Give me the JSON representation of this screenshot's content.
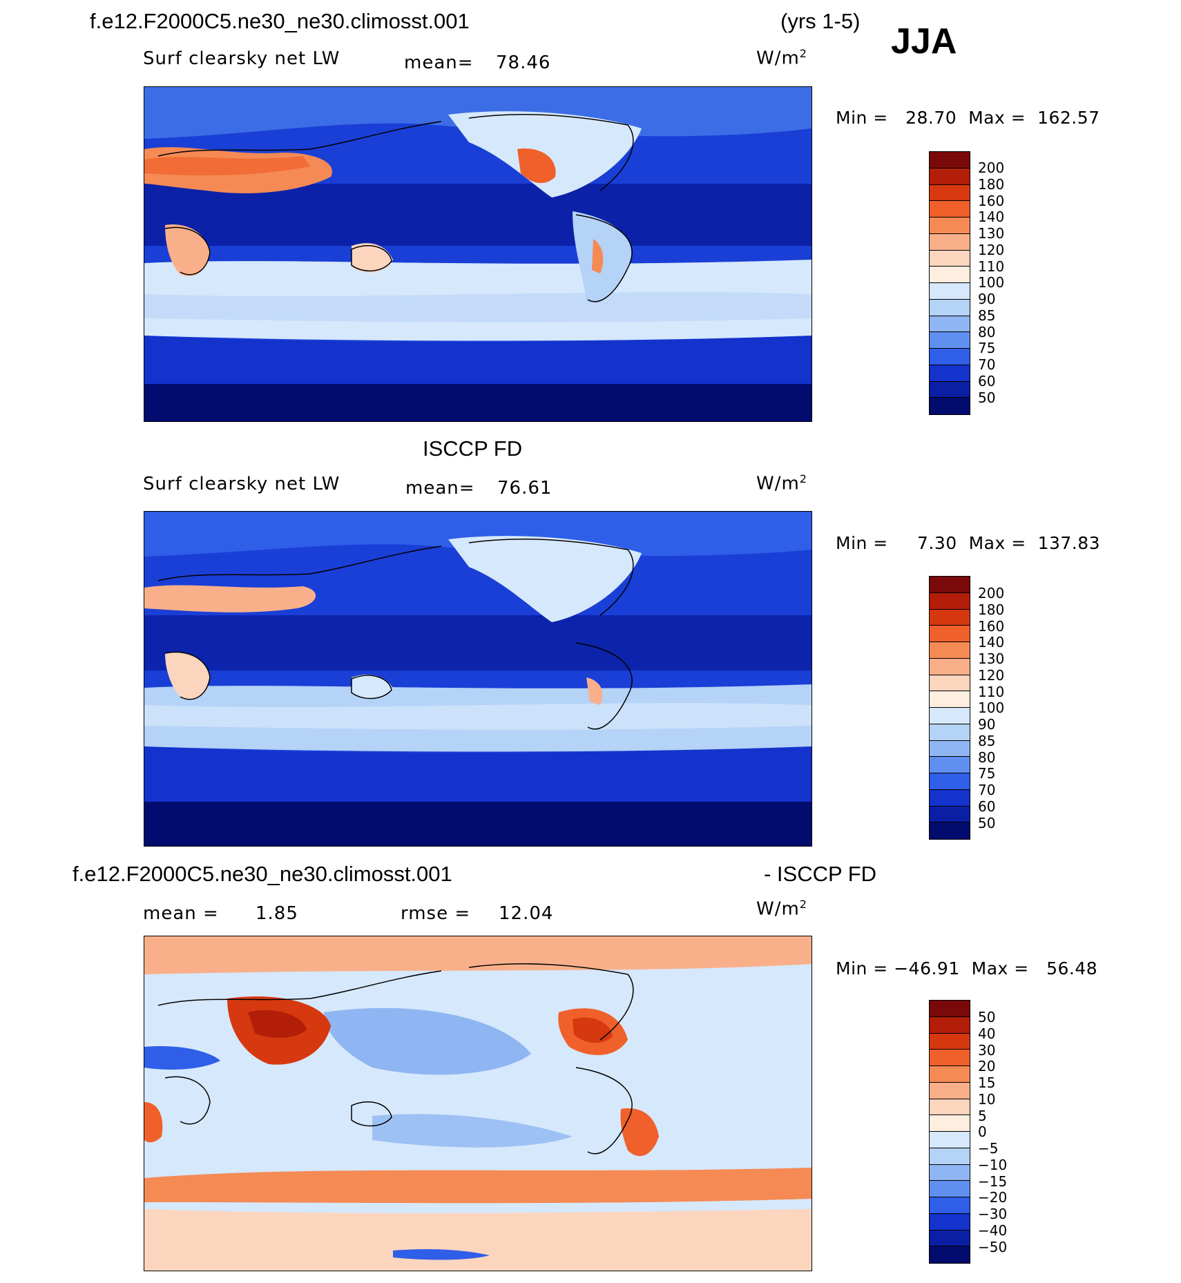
{
  "header": {
    "case_name": "f.e12.F2000C5.ne30_ne30.climosst.001",
    "years": "(yrs 1-5)",
    "season": "JJA"
  },
  "panels": [
    {
      "id": "model",
      "field": "Surf  clearsky  net  LW",
      "mean_label": "mean=",
      "mean_value": "78.46",
      "units_base": "W/m",
      "units_exp": "2",
      "min_label": "Min  =",
      "min_value": "28.70",
      "max_label": "Max  =",
      "max_value": "162.57",
      "colorbar": {
        "labels": [
          "200",
          "180",
          "160",
          "140",
          "130",
          "120",
          "110",
          "100",
          "90",
          "85",
          "80",
          "75",
          "70",
          "60",
          "50"
        ],
        "colors": [
          "#7a0a0a",
          "#b31e0a",
          "#d6380f",
          "#f0602a",
          "#f58a55",
          "#f9b08a",
          "#fcd5bf",
          "#fdeedf",
          "#d6e8fb",
          "#b5d2f7",
          "#8fb6f2",
          "#5f8ff0",
          "#2f5ee8",
          "#1432cc",
          "#0a1fa3",
          "#020b6e"
        ]
      }
    },
    {
      "id": "obs",
      "title": "ISCCP FD",
      "field": "Surf  clearsky  net  LW",
      "mean_label": "mean=",
      "mean_value": "76.61",
      "units_base": "W/m",
      "units_exp": "2",
      "min_label": "Min  =",
      "min_value": "7.30",
      "max_label": "Max  =",
      "max_value": "137.83",
      "colorbar": {
        "labels": [
          "200",
          "180",
          "160",
          "140",
          "130",
          "120",
          "110",
          "100",
          "90",
          "85",
          "80",
          "75",
          "70",
          "60",
          "50"
        ],
        "colors": [
          "#7a0a0a",
          "#b31e0a",
          "#d6380f",
          "#f0602a",
          "#f58a55",
          "#f9b08a",
          "#fcd5bf",
          "#fdeedf",
          "#d6e8fb",
          "#b5d2f7",
          "#8fb6f2",
          "#5f8ff0",
          "#2f5ee8",
          "#1432cc",
          "#0a1fa3",
          "#020b6e"
        ]
      }
    },
    {
      "id": "diff",
      "title_left": "f.e12.F2000C5.ne30_ne30.climosst.001",
      "title_right": "- ISCCP FD",
      "mean_label": "mean  =",
      "mean_value": "1.85",
      "rmse_label": "rmse  =",
      "rmse_value": "12.04",
      "units_base": "W/m",
      "units_exp": "2",
      "min_label": "Min  =",
      "min_value": "−46.91",
      "max_label": "Max  =",
      "max_value": "56.48",
      "colorbar": {
        "labels": [
          "50",
          "40",
          "30",
          "20",
          "15",
          "10",
          "5",
          "0",
          "−5",
          "−10",
          "−15",
          "−20",
          "−30",
          "−40",
          "−50"
        ],
        "colors": [
          "#7a0a0a",
          "#b31e0a",
          "#d6380f",
          "#f0602a",
          "#f58a55",
          "#f9b08a",
          "#fcd5bf",
          "#fdeedf",
          "#d6e8fb",
          "#b5d2f7",
          "#8fb6f2",
          "#5f8ff0",
          "#2f5ee8",
          "#1432cc",
          "#0a1fa3",
          "#020b6e"
        ]
      }
    }
  ]
}
